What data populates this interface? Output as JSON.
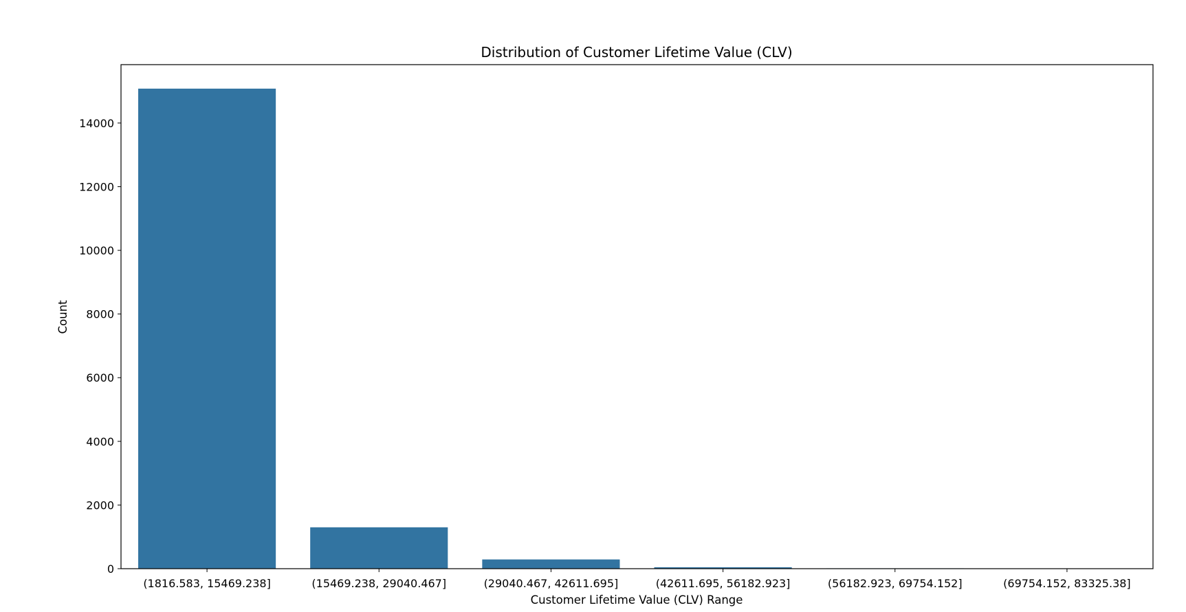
{
  "chart_data": {
    "type": "bar",
    "title": "Distribution of Customer Lifetime Value (CLV)",
    "xlabel": "Customer Lifetime Value (CLV) Range",
    "ylabel": "Count",
    "categories": [
      "(1816.583, 15469.238]",
      "(15469.238, 29040.467]",
      "(29040.467, 42611.695]",
      "(42611.695, 56182.923]",
      "(56182.923, 69754.152]",
      "(69754.152, 83325.38]"
    ],
    "values": [
      15080,
      1300,
      290,
      45,
      12,
      3
    ],
    "ylim": [
      0,
      15834
    ],
    "yticks": [
      0,
      2000,
      4000,
      6000,
      8000,
      10000,
      12000,
      14000
    ],
    "ytick_labels": [
      "0",
      "2000",
      "4000",
      "6000",
      "8000",
      "10000",
      "12000",
      "14000"
    ],
    "grid": false,
    "bar_color": "#3274a1"
  }
}
